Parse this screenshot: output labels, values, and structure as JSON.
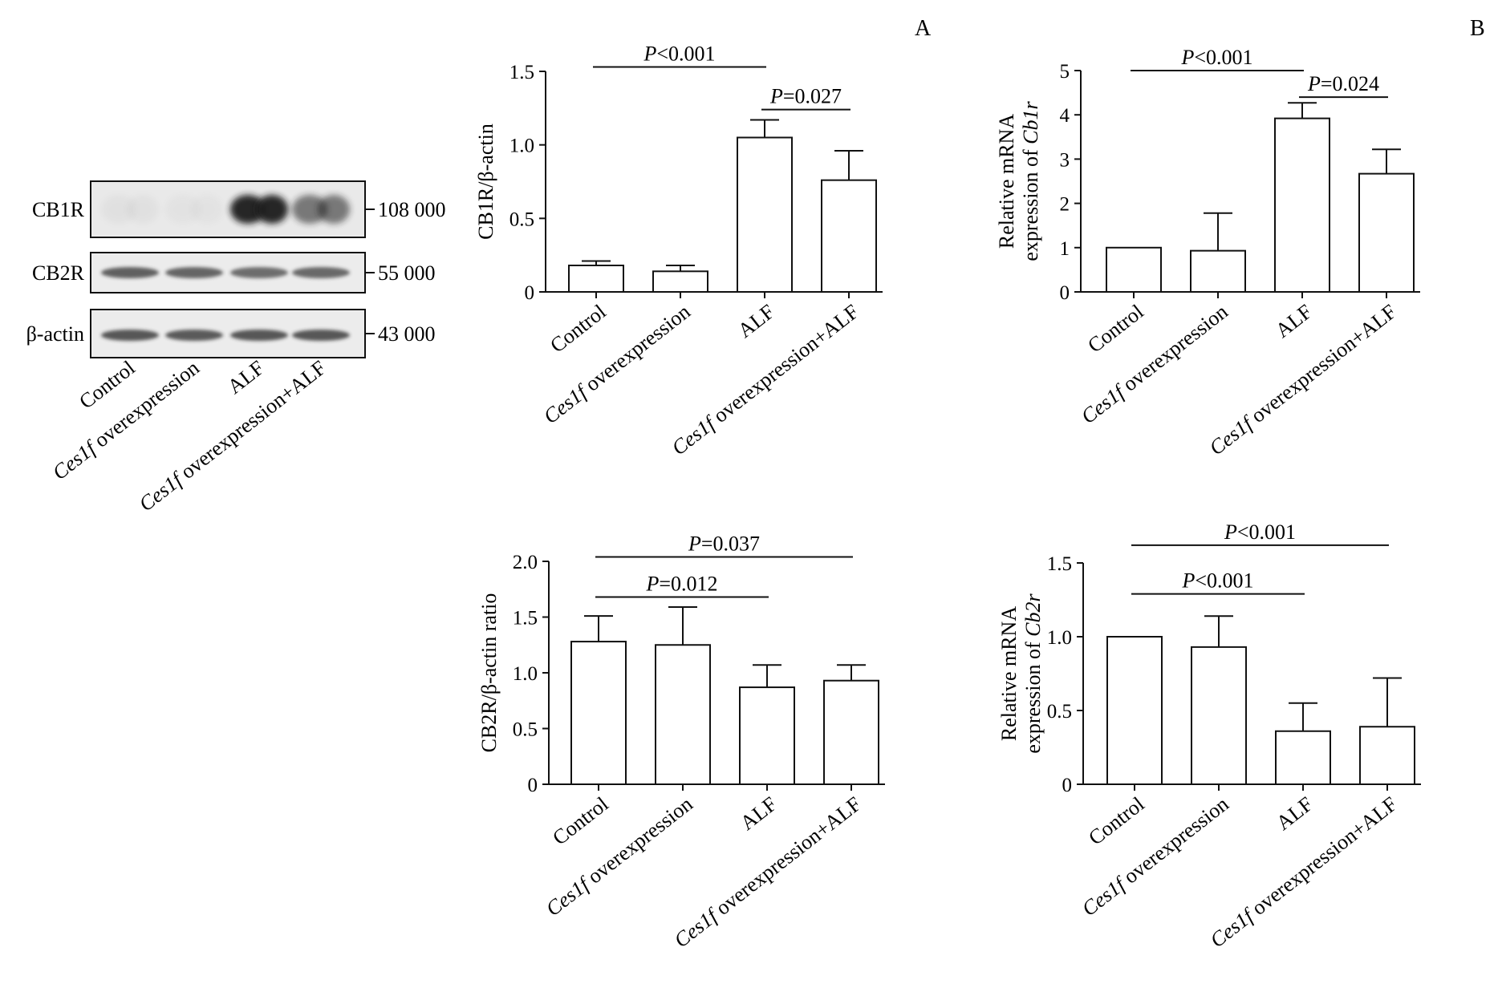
{
  "panel_labels": {
    "a": "A",
    "b": "B"
  },
  "western_blot": {
    "band_labels": [
      "CB1R",
      "CB2R",
      "β-actin"
    ],
    "mw_labels": [
      "108 000",
      "55 000",
      "43 000"
    ],
    "lane_labels": [
      {
        "italic": "",
        "text": "Control"
      },
      {
        "italic": "Ces1f",
        "text": " overexpression"
      },
      {
        "italic": "",
        "text": "ALF"
      },
      {
        "italic": "Ces1f",
        "text": " overexpression+ALF"
      }
    ],
    "band_intensity": [
      [
        0.05,
        0.04,
        0.95,
        0.55
      ],
      [
        0.75,
        0.72,
        0.68,
        0.7
      ],
      [
        0.8,
        0.78,
        0.8,
        0.8
      ]
    ]
  },
  "chart_data": [
    {
      "id": "cb1r-protein",
      "type": "bar",
      "ylabel": "CB1R/β-actin",
      "ylim": [
        0,
        1.5
      ],
      "yticks": [
        "0",
        "0.5",
        "1.0",
        "1.5"
      ],
      "categories": [
        "Control",
        "Ces1f overexpression",
        "ALF",
        "Ces1f overexpression+ALF"
      ],
      "values": [
        0.18,
        0.14,
        1.05,
        0.76
      ],
      "errors": [
        0.03,
        0.04,
        0.12,
        0.2
      ],
      "significance": [
        {
          "from": 0,
          "to": 2,
          "label": "P<0.001",
          "level": 1.53
        },
        {
          "from": 2,
          "to": 3,
          "label": "P=0.027",
          "level": 1.24
        }
      ]
    },
    {
      "id": "cb1r-mrna",
      "type": "bar",
      "ylabel": "Relative mRNA expression of Cb1r",
      "ylim": [
        0,
        5
      ],
      "yticks": [
        "0",
        "1",
        "2",
        "3",
        "4",
        "5"
      ],
      "categories": [
        "Control",
        "Ces1f overexpression",
        "ALF",
        "Ces1f overexpression+ALF"
      ],
      "values": [
        1.0,
        0.93,
        3.92,
        2.67
      ],
      "errors": [
        0,
        0.85,
        0.35,
        0.55
      ],
      "significance": [
        {
          "from": 0,
          "to": 2,
          "label": "P<0.001",
          "level": 5.0
        },
        {
          "from": 2,
          "to": 3,
          "label": "P=0.024",
          "level": 4.4
        }
      ]
    },
    {
      "id": "cb2r-protein",
      "type": "bar",
      "ylabel": "CB2R/β-actin ratio",
      "ylim": [
        0,
        2.0
      ],
      "yticks": [
        "0",
        "0.5",
        "1.0",
        "1.5",
        "2.0"
      ],
      "categories": [
        "Control",
        "Ces1f overexpression",
        "ALF",
        "Ces1f overexpression+ALF"
      ],
      "values": [
        1.28,
        1.25,
        0.87,
        0.93
      ],
      "errors": [
        0.23,
        0.34,
        0.2,
        0.14
      ],
      "significance": [
        {
          "from": 0,
          "to": 3,
          "label": "P=0.037",
          "level": 2.04
        },
        {
          "from": 0,
          "to": 2,
          "label": "P=0.012",
          "level": 1.68
        }
      ]
    },
    {
      "id": "cb2r-mrna",
      "type": "bar",
      "ylabel": "Relative mRNA expression of Cb2r",
      "ylim": [
        0,
        1.5
      ],
      "yticks": [
        "0",
        "0.5",
        "1.0",
        "1.5"
      ],
      "categories": [
        "Control",
        "Ces1f overexpression",
        "ALF",
        "Ces1f overexpression+ALF"
      ],
      "values": [
        1.0,
        0.93,
        0.36,
        0.39
      ],
      "errors": [
        0,
        0.21,
        0.19,
        0.33
      ],
      "significance": [
        {
          "from": 0,
          "to": 3,
          "label": "P<0.001",
          "level": 1.62
        },
        {
          "from": 0,
          "to": 2,
          "label": "P<0.001",
          "level": 1.29
        }
      ]
    }
  ]
}
